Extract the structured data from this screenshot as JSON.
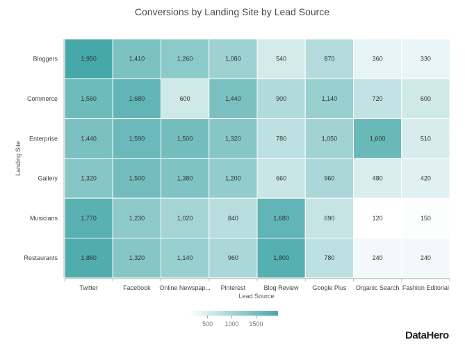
{
  "chart_data": {
    "type": "heatmap",
    "title": "Conversions by Landing Site by Lead Source",
    "xlabel": "Lead Source",
    "ylabel": "Landing Site",
    "columns": [
      "Twitter",
      "Facebook",
      "Online Newspap...",
      "Pinterest",
      "Blog Review",
      "Google Plus",
      "Organic Search",
      "Fashion Editorial"
    ],
    "rows": [
      "Bloggers",
      "Commerce",
      "Enterprise",
      "Gallery",
      "Musicians",
      "Restaurants"
    ],
    "values": [
      [
        1950,
        1410,
        1260,
        1080,
        540,
        870,
        360,
        330
      ],
      [
        1560,
        1680,
        600,
        1440,
        900,
        1140,
        720,
        600
      ],
      [
        1440,
        1590,
        1500,
        1320,
        780,
        1050,
        1600,
        510
      ],
      [
        1320,
        1500,
        1380,
        1200,
        660,
        960,
        480,
        420
      ],
      [
        1770,
        1230,
        1020,
        840,
        1680,
        690,
        120,
        150
      ],
      [
        1860,
        1320,
        1140,
        960,
        1800,
        780,
        240,
        240
      ]
    ],
    "value_labels": [
      [
        "1,950",
        "1,410",
        "1,260",
        "1,080",
        "540",
        "870",
        "360",
        "330"
      ],
      [
        "1,560",
        "1,680",
        "600",
        "1,440",
        "900",
        "1,140",
        "720",
        "600"
      ],
      [
        "1,440",
        "1,590",
        "1,500",
        "1,320",
        "780",
        "1,050",
        "1,600",
        "510"
      ],
      [
        "1,320",
        "1,500",
        "1,380",
        "1,200",
        "660",
        "960",
        "480",
        "420"
      ],
      [
        "1,770",
        "1,230",
        "1,020",
        "840",
        "1,680",
        "690",
        "120",
        "150"
      ],
      [
        "1,860",
        "1,320",
        "1,140",
        "960",
        "1,800",
        "780",
        "240",
        "240"
      ]
    ],
    "color_range": [
      120,
      1950
    ],
    "color_low": "#ffffff",
    "color_high": "#47a8a9",
    "legend": {
      "ticks": [
        500,
        1000,
        1500
      ],
      "tick_labels": [
        "500",
        "1000",
        "1500"
      ],
      "placement": "bottom-center"
    },
    "grid": false
  },
  "brand": "DataHero"
}
